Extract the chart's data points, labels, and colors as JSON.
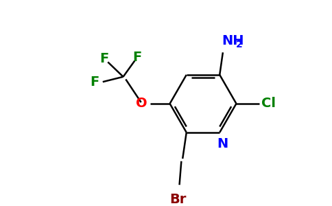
{
  "bg_color": "#ffffff",
  "bond_color": "#000000",
  "atom_colors": {
    "N": "#0000ff",
    "O": "#ff0000",
    "Cl": "#008000",
    "Br": "#8b0000",
    "F": "#008000",
    "NH2": "#0000ff",
    "C": "#000000"
  },
  "font_size_main": 14,
  "font_size_sub": 10,
  "figsize": [
    4.84,
    3.0
  ],
  "dpi": 100,
  "lw": 1.8
}
